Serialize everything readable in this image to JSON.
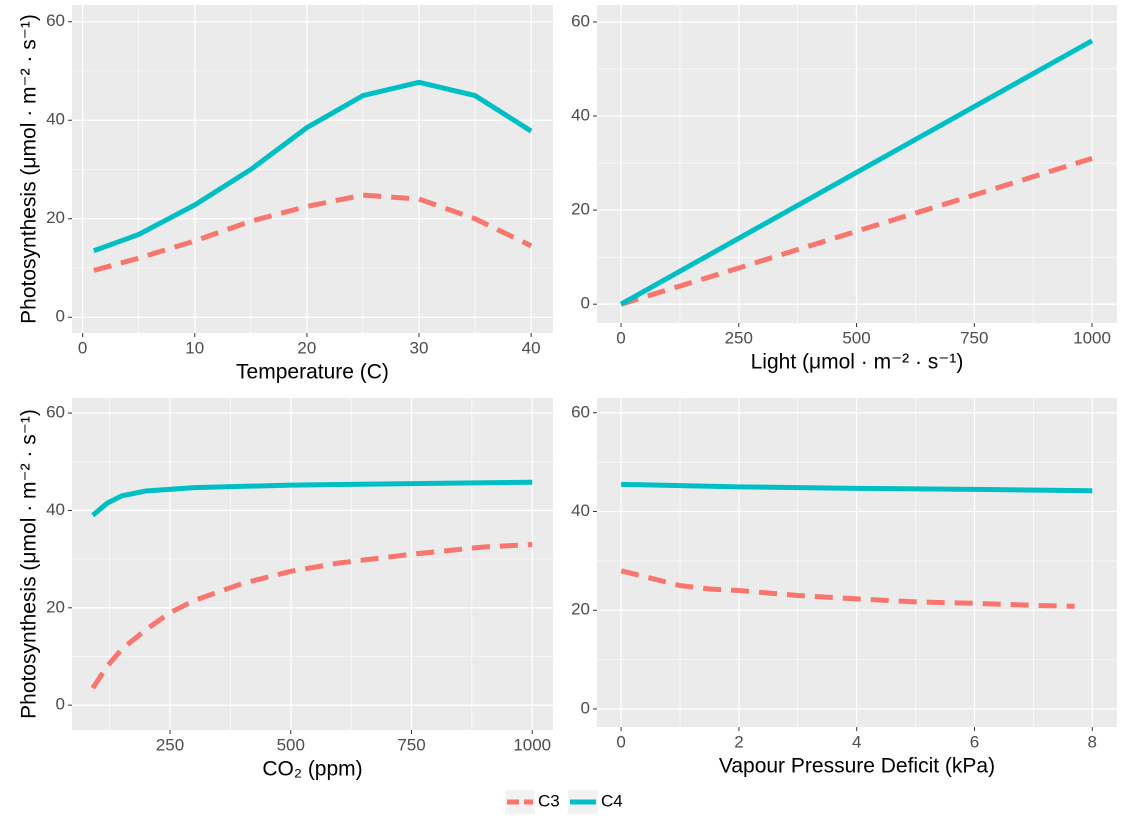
{
  "legend": [
    {
      "name": "C3",
      "color": "#F8766D",
      "linetype": "dashed"
    },
    {
      "name": "C4",
      "color": "#00BFC4",
      "linetype": "solid"
    }
  ],
  "chart_data": [
    {
      "type": "line",
      "xlabel": "Temperature (C)",
      "ylabel": "Photosynthesis (μmol · m⁻² · s⁻¹)",
      "xlim": [
        -0.95,
        41.95
      ],
      "ylim": [
        -3.2,
        63.4
      ],
      "xticks": [
        0,
        10,
        20,
        30,
        40
      ],
      "yticks": [
        0,
        20,
        40,
        60
      ],
      "grid": true,
      "series": [
        {
          "x": [
            1,
            5,
            10,
            15,
            20,
            25,
            30,
            35,
            40
          ],
          "values": [
            9.5,
            12,
            15.5,
            19.5,
            22.5,
            24.8,
            24,
            20,
            14.5
          ]
        },
        {
          "x": [
            1,
            5,
            10,
            15,
            20,
            25,
            30,
            35,
            40
          ],
          "values": [
            13.5,
            16.8,
            22.8,
            30,
            38.5,
            45,
            47.7,
            45,
            37.8
          ]
        }
      ]
    },
    {
      "type": "line",
      "xlabel": "Light (μmol · m⁻² · s⁻¹)",
      "xlim": [
        -51,
        1053
      ],
      "ylim": [
        -4,
        63.6
      ],
      "xticks": [
        0,
        250,
        500,
        750,
        1000
      ],
      "yticks": [
        0,
        20,
        40,
        60
      ],
      "grid": true,
      "series": [
        {
          "x": [
            0,
            250,
            500,
            750,
            1000
          ],
          "values": [
            0,
            7.7,
            15.5,
            23.2,
            31
          ]
        },
        {
          "x": [
            0,
            250,
            500,
            750,
            1000
          ],
          "values": [
            0,
            14,
            28,
            42,
            56
          ]
        }
      ]
    },
    {
      "type": "line",
      "xlabel": "CO₂ (ppm)",
      "ylabel": "Photosynthesis (μmol · m⁻² · s⁻¹)",
      "xlim": [
        47,
        1043
      ],
      "ylim": [
        -5.1,
        63.1
      ],
      "xticks": [
        250,
        500,
        750,
        1000
      ],
      "yticks": [
        0,
        20,
        40,
        60
      ],
      "grid": true,
      "series": [
        {
          "x": [
            90,
            120,
            150,
            200,
            250,
            300,
            400,
            500,
            600,
            750,
            900,
            1000
          ],
          "values": [
            3.5,
            8,
            11.5,
            15.5,
            19,
            21.5,
            25,
            27.5,
            29.2,
            31,
            32.5,
            33
          ]
        },
        {
          "x": [
            90,
            120,
            150,
            200,
            300,
            500,
            750,
            1000
          ],
          "values": [
            39,
            41.5,
            43,
            44,
            44.7,
            45.2,
            45.5,
            45.8
          ]
        }
      ]
    },
    {
      "type": "line",
      "xlabel": "Vapour Pressure Deficit (kPa)",
      "xlim": [
        -0.41,
        8.42
      ],
      "ylim": [
        -3.65,
        63
      ],
      "xticks": [
        0,
        2,
        4,
        6,
        8
      ],
      "yticks": [
        0,
        20,
        40,
        60
      ],
      "grid": true,
      "series": [
        {
          "x": [
            0,
            0.5,
            1,
            1.5,
            2,
            3,
            4,
            5,
            6,
            7,
            7.7
          ],
          "values": [
            28,
            26.5,
            25,
            24.3,
            24,
            23,
            22.3,
            21.7,
            21.4,
            21,
            20.8
          ]
        },
        {
          "x": [
            0,
            2,
            4,
            6,
            8
          ],
          "values": [
            45.5,
            45,
            44.7,
            44.5,
            44.2
          ]
        }
      ]
    }
  ]
}
